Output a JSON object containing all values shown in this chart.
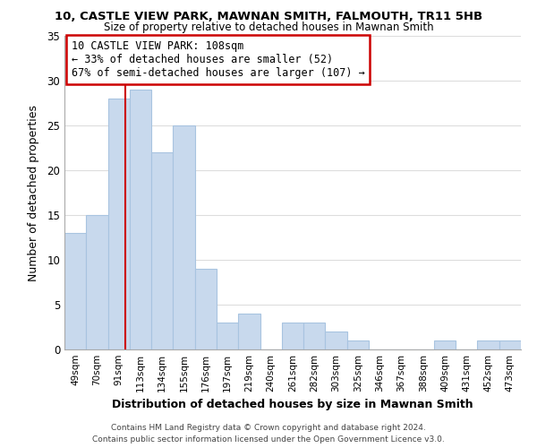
{
  "title1": "10, CASTLE VIEW PARK, MAWNAN SMITH, FALMOUTH, TR11 5HB",
  "title2": "Size of property relative to detached houses in Mawnan Smith",
  "xlabel": "Distribution of detached houses by size in Mawnan Smith",
  "ylabel": "Number of detached properties",
  "footer1": "Contains HM Land Registry data © Crown copyright and database right 2024.",
  "footer2": "Contains public sector information licensed under the Open Government Licence v3.0.",
  "bar_labels": [
    "49sqm",
    "70sqm",
    "91sqm",
    "113sqm",
    "134sqm",
    "155sqm",
    "176sqm",
    "197sqm",
    "219sqm",
    "240sqm",
    "261sqm",
    "282sqm",
    "303sqm",
    "325sqm",
    "346sqm",
    "367sqm",
    "388sqm",
    "409sqm",
    "431sqm",
    "452sqm",
    "473sqm"
  ],
  "bar_values": [
    13,
    15,
    28,
    29,
    22,
    25,
    9,
    3,
    4,
    0,
    3,
    3,
    2,
    1,
    0,
    0,
    0,
    1,
    0,
    1,
    1
  ],
  "bar_color": "#c8d9ed",
  "bar_edge_color": "#a8c4e0",
  "property_sqm": 108,
  "bin_starts": [
    49,
    70,
    91,
    113,
    134,
    155,
    176,
    197,
    219,
    240,
    261,
    282,
    303,
    325,
    346,
    367,
    388,
    409,
    431,
    452,
    473
  ],
  "bin_width": 21,
  "ylim": [
    0,
    35
  ],
  "yticks": [
    0,
    5,
    10,
    15,
    20,
    25,
    30,
    35
  ],
  "annotation_title": "10 CASTLE VIEW PARK: 108sqm",
  "annotation_line1": "← 33% of detached houses are smaller (52)",
  "annotation_line2": "67% of semi-detached houses are larger (107) →",
  "annotation_box_color": "#ffffff",
  "annotation_box_edge": "#cc0000",
  "property_vline_color": "#cc0000",
  "background_color": "#ffffff",
  "grid_color": "#dddddd"
}
